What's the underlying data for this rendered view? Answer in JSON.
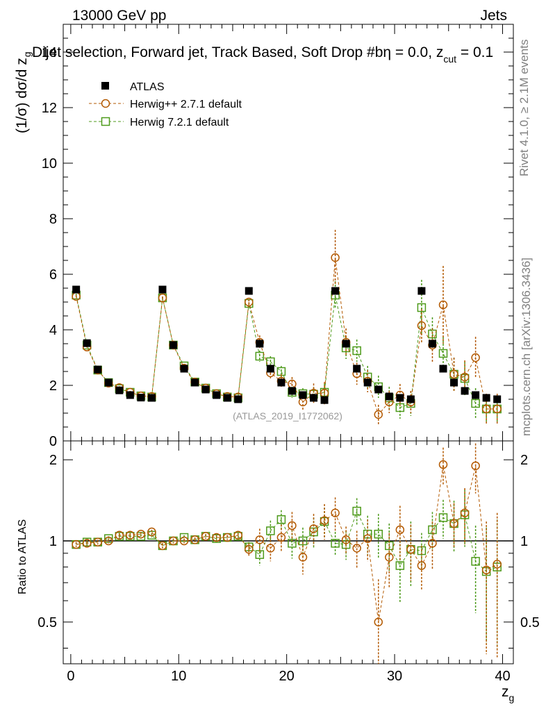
{
  "header": {
    "energy": "13000 GeV pp",
    "category": "Jets",
    "title": "Dijet selection, Forward jet, Track Based, Soft Drop #b",
    "title_eta": "η = 0.0, z",
    "title_cut_sub": "cut",
    "title_tail": " = 0.1"
  },
  "side_labels": {
    "rivet": "Rivet 4.1.0, ≥ 2.1M events",
    "mcplots": "mcplots.cern.ch [arXiv:1306.3436]"
  },
  "watermark": "(ATLAS_2019_I1772062)",
  "colors": {
    "atlas": "#000000",
    "herwigpp": "#b35900",
    "herwig7": "#4d9a1a"
  },
  "chart_data": [
    {
      "type": "scatter",
      "panel": "main",
      "ylabel": "(1/σ) dσ/d z_g",
      "ylabel_main": "(1/σ) dσ/d z",
      "ylabel_sub": "g",
      "xlim": [
        -0.7,
        41
      ],
      "ylim": [
        0,
        15
      ],
      "yticks": [
        0,
        2,
        4,
        6,
        8,
        10,
        12,
        14
      ],
      "yticklabels": [
        "0",
        "2",
        "4",
        "6",
        "8",
        "10",
        "12",
        "14"
      ],
      "x": [
        0.5,
        1.5,
        2.5,
        3.5,
        4.5,
        5.5,
        6.5,
        7.5,
        8.5,
        9.5,
        10.5,
        11.5,
        12.5,
        13.5,
        14.5,
        15.5,
        16.5,
        17.5,
        18.5,
        19.5,
        20.5,
        21.5,
        22.5,
        23.5,
        24.5,
        25.5,
        26.5,
        27.5,
        28.5,
        29.5,
        30.5,
        31.5,
        32.5,
        33.5,
        34.5,
        35.5,
        36.5,
        37.5,
        38.5,
        39.5
      ],
      "legend": [
        "ATLAS",
        "Herwig++ 2.7.1 default",
        "Herwig 7.2.1 default"
      ],
      "series": [
        {
          "name": "ATLAS",
          "marker": "filled-square",
          "values": [
            5.45,
            3.52,
            2.57,
            2.1,
            1.82,
            1.65,
            1.56,
            1.55,
            5.45,
            3.45,
            2.6,
            2.1,
            1.85,
            1.65,
            1.55,
            1.5,
            5.4,
            3.5,
            2.6,
            2.1,
            1.8,
            1.65,
            1.55,
            1.47,
            5.4,
            3.5,
            2.6,
            2.1,
            1.85,
            1.6,
            1.55,
            1.5,
            5.4,
            3.5,
            2.6,
            2.1,
            1.8,
            1.65,
            1.55,
            1.5
          ]
        },
        {
          "name": "Herwig++ 2.7.1 default",
          "marker": "open-circle",
          "values": [
            5.2,
            3.38,
            2.55,
            2.08,
            1.92,
            1.75,
            1.62,
            1.6,
            5.15,
            3.45,
            2.62,
            2.12,
            1.9,
            1.7,
            1.6,
            1.58,
            5.0,
            3.55,
            2.45,
            2.15,
            2.05,
            1.4,
            1.72,
            1.72,
            6.6,
            3.55,
            2.42,
            2.15,
            0.95,
            1.4,
            1.65,
            1.4,
            4.15,
            3.45,
            4.9,
            2.4,
            2.3,
            3.0,
            1.15,
            1.15
          ],
          "err_up": [
            0.05,
            0.05,
            0.05,
            0.05,
            0.05,
            0.05,
            0.05,
            0.05,
            0.05,
            0.05,
            0.05,
            0.05,
            0.05,
            0.05,
            0.05,
            0.05,
            0.1,
            0.25,
            0.25,
            0.25,
            0.25,
            0.3,
            0.35,
            0.4,
            1.0,
            0.5,
            0.4,
            0.4,
            0.35,
            0.4,
            0.4,
            0.4,
            0.6,
            0.6,
            1.4,
            0.6,
            0.6,
            0.75,
            0.55,
            0.55
          ],
          "err_down": [
            0.05,
            0.05,
            0.05,
            0.05,
            0.05,
            0.05,
            0.05,
            0.05,
            0.05,
            0.05,
            0.05,
            0.05,
            0.05,
            0.05,
            0.05,
            0.05,
            0.1,
            0.25,
            0.25,
            0.25,
            0.25,
            0.3,
            0.35,
            0.4,
            1.0,
            0.5,
            0.4,
            0.4,
            0.35,
            0.4,
            0.4,
            0.4,
            0.6,
            0.6,
            1.4,
            0.6,
            0.6,
            0.75,
            0.55,
            0.55
          ]
        },
        {
          "name": "Herwig 7.2.1 default",
          "marker": "open-square",
          "values": [
            5.25,
            3.45,
            2.55,
            2.1,
            1.88,
            1.75,
            1.62,
            1.58,
            5.15,
            3.45,
            2.7,
            2.12,
            1.9,
            1.7,
            1.58,
            1.55,
            4.95,
            3.05,
            2.85,
            2.5,
            1.75,
            1.7,
            1.68,
            1.75,
            5.25,
            3.35,
            3.25,
            2.3,
            1.95,
            1.55,
            1.2,
            1.35,
            4.8,
            3.85,
            3.15,
            2.4,
            2.25,
            1.35,
            1.15,
            1.15
          ],
          "err_up": [
            0.05,
            0.05,
            0.05,
            0.05,
            0.05,
            0.05,
            0.05,
            0.05,
            0.05,
            0.05,
            0.05,
            0.05,
            0.05,
            0.05,
            0.05,
            0.05,
            0.15,
            0.2,
            0.2,
            0.2,
            0.2,
            0.2,
            0.25,
            0.3,
            0.5,
            0.4,
            0.4,
            0.4,
            0.4,
            0.4,
            0.4,
            0.45,
            1.0,
            0.6,
            0.6,
            0.6,
            0.6,
            0.55,
            0.5,
            0.5
          ],
          "err_down": [
            0.05,
            0.05,
            0.05,
            0.05,
            0.05,
            0.05,
            0.05,
            0.05,
            0.05,
            0.05,
            0.05,
            0.05,
            0.05,
            0.05,
            0.05,
            0.05,
            0.15,
            0.2,
            0.2,
            0.2,
            0.2,
            0.2,
            0.25,
            0.3,
            0.5,
            0.4,
            0.4,
            0.4,
            0.4,
            0.4,
            0.4,
            0.45,
            1.0,
            0.6,
            0.6,
            0.6,
            0.6,
            0.55,
            0.5,
            0.5
          ]
        }
      ]
    },
    {
      "type": "scatter",
      "panel": "ratio",
      "ylabel": "Ratio to ATLAS",
      "xlabel": "z_g",
      "xlabel_main": "z",
      "xlabel_sub": "g",
      "xlim": [
        -0.7,
        41
      ],
      "ylim": [
        0.35,
        2.35
      ],
      "reference_line": 1,
      "xticks": [
        0,
        10,
        20,
        30,
        40
      ],
      "xticklabels": [
        "0",
        "10",
        "20",
        "30",
        "40"
      ],
      "yticks": [
        0.5,
        1,
        2
      ],
      "yticklabels": [
        "0.5",
        "1",
        "2"
      ],
      "x": [
        0.5,
        1.5,
        2.5,
        3.5,
        4.5,
        5.5,
        6.5,
        7.5,
        8.5,
        9.5,
        10.5,
        11.5,
        12.5,
        13.5,
        14.5,
        15.5,
        16.5,
        17.5,
        18.5,
        19.5,
        20.5,
        21.5,
        22.5,
        23.5,
        24.5,
        25.5,
        26.5,
        27.5,
        28.5,
        29.5,
        30.5,
        31.5,
        32.5,
        33.5,
        34.5,
        35.5,
        36.5,
        37.5,
        38.5,
        39.5
      ],
      "series": [
        {
          "name": "Herwig++ 2.7.1 default",
          "marker": "open-circle",
          "values": [
            0.97,
            0.98,
            0.99,
            1.0,
            1.05,
            1.05,
            1.06,
            1.08,
            0.96,
            1.0,
            1.0,
            1.01,
            1.04,
            1.03,
            1.03,
            1.05,
            0.93,
            1.01,
            0.94,
            1.03,
            1.14,
            0.87,
            1.11,
            1.19,
            1.27,
            1.01,
            0.94,
            1.02,
            0.5,
            0.87,
            1.1,
            0.93,
            0.81,
            0.98,
            1.92,
            1.16,
            1.27,
            1.9,
            0.78,
            0.82
          ],
          "err_up": [
            0.02,
            0.02,
            0.02,
            0.02,
            0.02,
            0.02,
            0.02,
            0.02,
            0.02,
            0.02,
            0.02,
            0.02,
            0.02,
            0.02,
            0.02,
            0.02,
            0.05,
            0.1,
            0.1,
            0.12,
            0.14,
            0.12,
            0.15,
            0.18,
            0.18,
            0.12,
            0.15,
            0.18,
            0.22,
            0.2,
            0.25,
            0.22,
            0.15,
            0.2,
            0.3,
            0.22,
            0.3,
            0.4,
            0.4,
            0.45
          ],
          "err_down": [
            0.02,
            0.02,
            0.02,
            0.02,
            0.02,
            0.02,
            0.02,
            0.02,
            0.02,
            0.02,
            0.02,
            0.02,
            0.02,
            0.02,
            0.02,
            0.02,
            0.05,
            0.1,
            0.1,
            0.12,
            0.14,
            0.12,
            0.15,
            0.18,
            0.18,
            0.12,
            0.15,
            0.18,
            0.22,
            0.2,
            0.25,
            0.22,
            0.15,
            0.2,
            0.3,
            0.22,
            0.3,
            0.4,
            0.4,
            0.45
          ]
        },
        {
          "name": "Herwig 7.2.1 default",
          "marker": "open-square",
          "values": [
            0.97,
            0.99,
            0.99,
            1.02,
            1.04,
            1.04,
            1.04,
            1.05,
            0.96,
            1.0,
            1.03,
            1.01,
            1.04,
            1.02,
            1.03,
            1.04,
            0.95,
            0.89,
            1.09,
            1.2,
            0.98,
            1.0,
            1.08,
            1.18,
            0.98,
            0.97,
            1.29,
            1.06,
            1.06,
            0.96,
            0.81,
            0.93,
            0.92,
            1.1,
            1.22,
            1.16,
            1.25,
            0.84,
            0.77,
            0.8
          ],
          "err_up": [
            0.02,
            0.02,
            0.02,
            0.02,
            0.02,
            0.02,
            0.02,
            0.02,
            0.02,
            0.02,
            0.02,
            0.02,
            0.02,
            0.02,
            0.02,
            0.02,
            0.04,
            0.08,
            0.1,
            0.1,
            0.12,
            0.12,
            0.14,
            0.15,
            0.1,
            0.12,
            0.15,
            0.18,
            0.2,
            0.2,
            0.22,
            0.25,
            0.15,
            0.18,
            0.2,
            0.25,
            0.3,
            0.3,
            0.35,
            0.4
          ],
          "err_down": [
            0.02,
            0.02,
            0.02,
            0.02,
            0.02,
            0.02,
            0.02,
            0.02,
            0.02,
            0.02,
            0.02,
            0.02,
            0.02,
            0.02,
            0.02,
            0.02,
            0.04,
            0.08,
            0.1,
            0.1,
            0.12,
            0.12,
            0.14,
            0.15,
            0.1,
            0.12,
            0.15,
            0.18,
            0.2,
            0.2,
            0.22,
            0.25,
            0.15,
            0.18,
            0.2,
            0.25,
            0.3,
            0.3,
            0.35,
            0.4
          ]
        }
      ]
    }
  ]
}
